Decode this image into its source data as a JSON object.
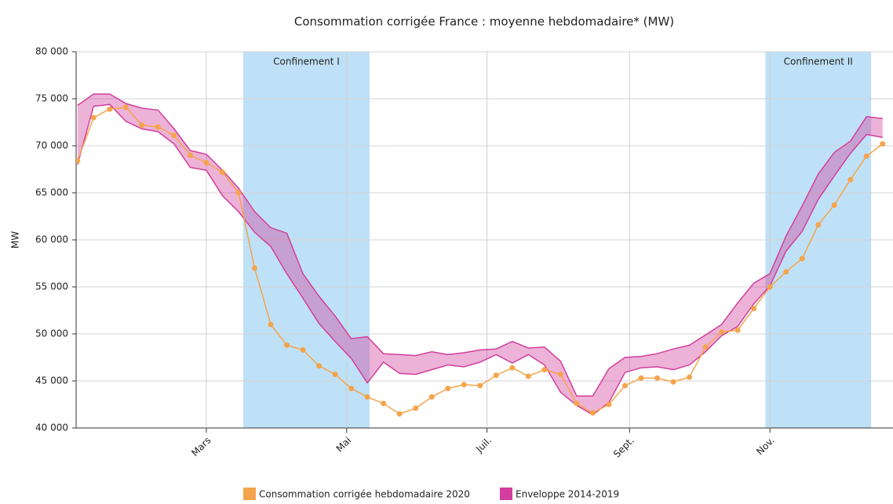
{
  "chart_data": {
    "type": "line",
    "title": "Consommation corrigée France : moyenne hebdomadaire* (MW)",
    "y_label": "MW",
    "x": [
      4,
      11,
      18,
      25,
      32,
      39,
      46,
      53,
      60,
      67,
      74,
      81,
      88,
      95,
      102,
      109,
      116,
      123,
      130,
      137,
      144,
      151,
      158,
      165,
      172,
      179,
      186,
      193,
      200,
      207,
      214,
      221,
      228,
      235,
      242,
      249,
      256,
      263,
      270,
      277,
      284,
      291,
      298,
      305,
      312,
      319,
      326,
      333,
      340,
      347,
      354
    ],
    "xlim": [
      3.4,
      358.5
    ],
    "xticks": [
      {
        "value": 60,
        "label": "Mars"
      },
      {
        "value": 121,
        "label": "Mai"
      },
      {
        "value": 182,
        "label": "Juil."
      },
      {
        "value": 244,
        "label": "Sept."
      },
      {
        "value": 305,
        "label": "Nov."
      }
    ],
    "ylim": [
      40000,
      80000
    ],
    "yticks": [
      {
        "value": 40000,
        "label": "40 000"
      },
      {
        "value": 45000,
        "label": "45 000"
      },
      {
        "value": 50000,
        "label": "50 000"
      },
      {
        "value": 55000,
        "label": "55 000"
      },
      {
        "value": 60000,
        "label": "60 000"
      },
      {
        "value": 65000,
        "label": "65 000"
      },
      {
        "value": 70000,
        "label": "70 000"
      },
      {
        "value": 75000,
        "label": "75 000"
      },
      {
        "value": 80000,
        "label": "80 000"
      }
    ],
    "grid": true,
    "shaded_regions": [
      {
        "label": "Confinement I",
        "x": [
          76,
          131
        ]
      },
      {
        "label": "Confinement II",
        "x": [
          303,
          349
        ]
      }
    ],
    "line_series": {
      "name": "Consommation corrigée hebdomadaire 2020",
      "color": "#f4a44c",
      "values": [
        68400,
        73000,
        73900,
        74100,
        72200,
        72000,
        71100,
        69000,
        68200,
        67200,
        65000,
        57000,
        51000,
        48800,
        48300,
        46600,
        45700,
        44200,
        43300,
        42600,
        41500,
        42100,
        43300,
        44200,
        44600,
        44500,
        45600,
        46400,
        45500,
        46200,
        45700,
        42600,
        41600,
        42500,
        44500,
        45300,
        45300,
        44900,
        45400,
        48600,
        50200,
        50400,
        52700,
        55000,
        56600,
        58000,
        61600,
        63700,
        66400,
        68900,
        70200
      ]
    },
    "band_series": {
      "name": "Enveloppe 2014-2019",
      "color": "#d23f9c",
      "upper": [
        74300,
        75500,
        75500,
        74500,
        74000,
        73800,
        71800,
        69500,
        69100,
        67400,
        65500,
        63000,
        61300,
        60700,
        56400,
        54000,
        51900,
        49500,
        49700,
        47900,
        47800,
        47700,
        48100,
        47800,
        48000,
        48300,
        48400,
        49200,
        48500,
        48600,
        47100,
        43400,
        43400,
        46300,
        47500,
        47600,
        47900,
        48400,
        48800,
        49900,
        51000,
        53300,
        55400,
        56400,
        60400,
        63600,
        67000,
        69300,
        70500,
        73100,
        72900
      ],
      "lower": [
        68000,
        74200,
        74400,
        72600,
        71800,
        71500,
        70200,
        67700,
        67400,
        64700,
        63000,
        60800,
        59300,
        56400,
        53800,
        51100,
        49200,
        47400,
        44800,
        47000,
        45800,
        45700,
        46200,
        46700,
        46500,
        47000,
        47800,
        46900,
        47800,
        46700,
        43800,
        42400,
        41400,
        42700,
        45900,
        46400,
        46500,
        46200,
        46700,
        48100,
        49800,
        50800,
        53200,
        55100,
        58800,
        60900,
        64300,
        66800,
        69200,
        71200,
        70900
      ]
    }
  }
}
